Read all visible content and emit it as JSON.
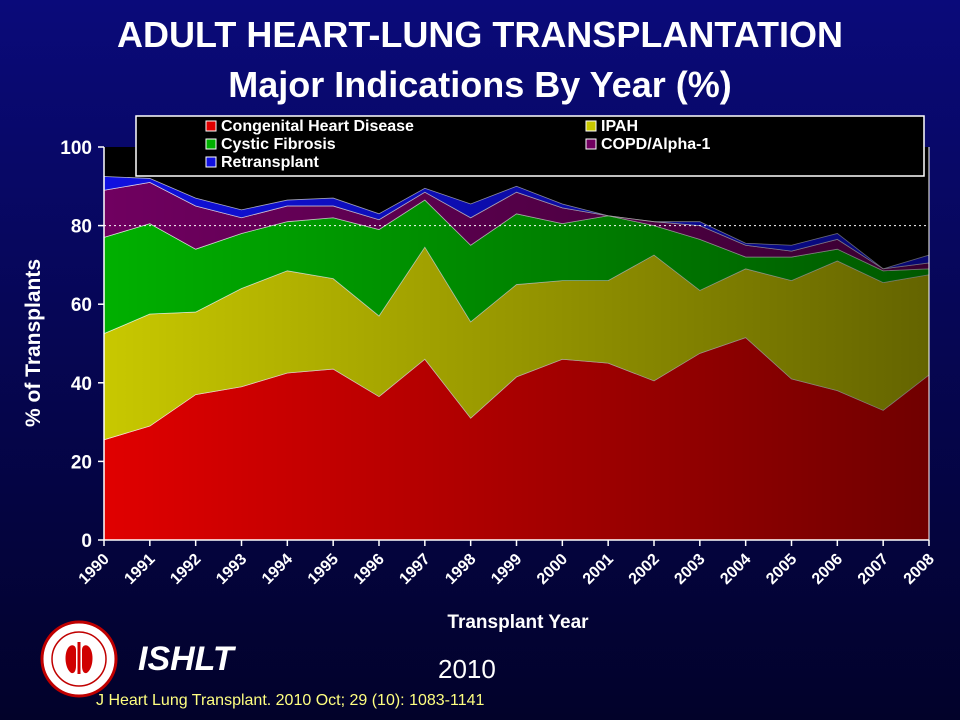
{
  "title": "ADULT HEART-LUNG TRANSPLANTATION",
  "subtitle": "Major Indications By Year (%)",
  "organization": "ISHLT",
  "year_mark": "2010",
  "citation": "J Heart Lung Transplant. 2010 Oct; 29 (10): 1083-1141",
  "colors": {
    "congenital": "#e00000",
    "ipah": "#c8c800",
    "cf": "#00b000",
    "copd": "#700060",
    "retransplant": "#1010e0",
    "plot_bg": "#000000",
    "legend_bg": "#000000"
  },
  "chart_data": {
    "type": "area",
    "stacked": true,
    "xlabel": "Transplant Year",
    "ylabel": "% of Transplants",
    "ylim": [
      0,
      100
    ],
    "yticks": [
      0,
      20,
      40,
      60,
      80,
      100
    ],
    "x": [
      "1990",
      "1991",
      "1992",
      "1993",
      "1994",
      "1995",
      "1996",
      "1997",
      "1998",
      "1999",
      "2000",
      "2001",
      "2002",
      "2003",
      "2004",
      "2005",
      "2006",
      "2007",
      "2008"
    ],
    "reference_line": 80,
    "legend_position": "top",
    "series": [
      {
        "name": "Congenital Heart Disease",
        "color_key": "congenital",
        "values": [
          25.5,
          29,
          37,
          39,
          42.5,
          43.5,
          36.5,
          46,
          31,
          41.5,
          46,
          45,
          40.5,
          47.5,
          51.5,
          41,
          38,
          33,
          42
        ]
      },
      {
        "name": "IPAH",
        "color_key": "ipah",
        "values": [
          27,
          28.5,
          21,
          25,
          26,
          23,
          20.5,
          28.5,
          24.5,
          23.5,
          20,
          21,
          32,
          16,
          17.5,
          25,
          33,
          32.5,
          25.5
        ]
      },
      {
        "name": "Cystic Fibrosis",
        "color_key": "cf",
        "values": [
          24.5,
          23,
          16,
          14,
          12.5,
          15.5,
          22,
          12,
          19.5,
          18,
          14.5,
          16.5,
          7.5,
          13,
          3,
          6,
          3,
          3,
          1.5
        ]
      },
      {
        "name": "COPD/Alpha-1",
        "color_key": "copd",
        "values": [
          12,
          10.5,
          11,
          4,
          4,
          3,
          2.5,
          2,
          7,
          5.5,
          4,
          0,
          1,
          3.5,
          3,
          1.5,
          2.5,
          0.5,
          1.5
        ]
      },
      {
        "name": "Retransplant",
        "color_key": "retransplant",
        "values": [
          3.5,
          1,
          2,
          2,
          1.5,
          2,
          1.5,
          1,
          3.5,
          1.5,
          1,
          0,
          0,
          1,
          0.5,
          1.5,
          1.5,
          0,
          2
        ]
      }
    ]
  }
}
